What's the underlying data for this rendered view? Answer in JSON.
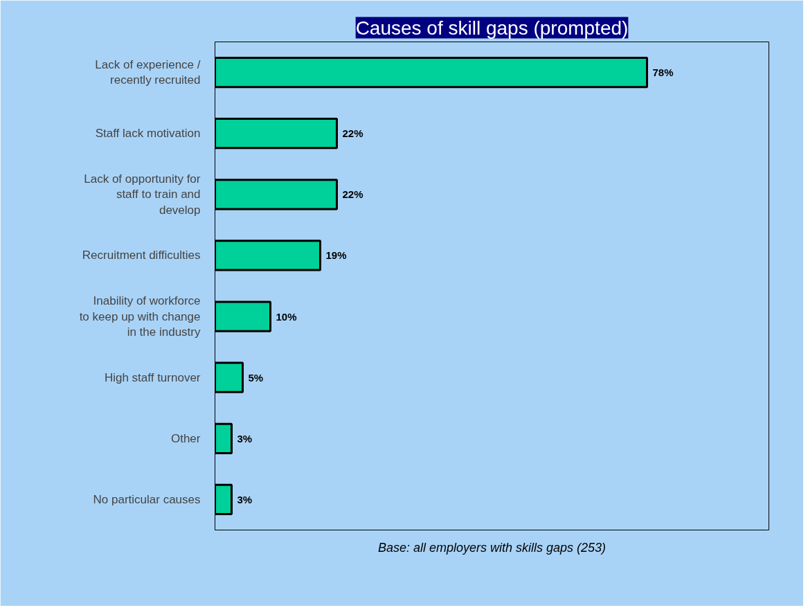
{
  "chart_data": {
    "type": "bar",
    "orientation": "horizontal",
    "title": "Causes of skill gaps (prompted)",
    "categories": [
      "Lack of experience / recently recruited",
      "Staff lack motivation",
      "Lack of opportunity for staff to train and develop",
      "Recruitment difficulties",
      "Inability of workforce to keep up with change in the industry",
      "High staff turnover",
      "Other",
      "No particular causes"
    ],
    "values": [
      78,
      22,
      22,
      19,
      10,
      5,
      3,
      3
    ],
    "value_labels": [
      "78%",
      "22%",
      "22%",
      "19%",
      "10%",
      "5%",
      "3%",
      "3%"
    ],
    "color": "#00d09a",
    "xlim": [
      0,
      100
    ],
    "grid": false,
    "annotations": [
      "Base: all employers with skills gaps (253)"
    ]
  }
}
